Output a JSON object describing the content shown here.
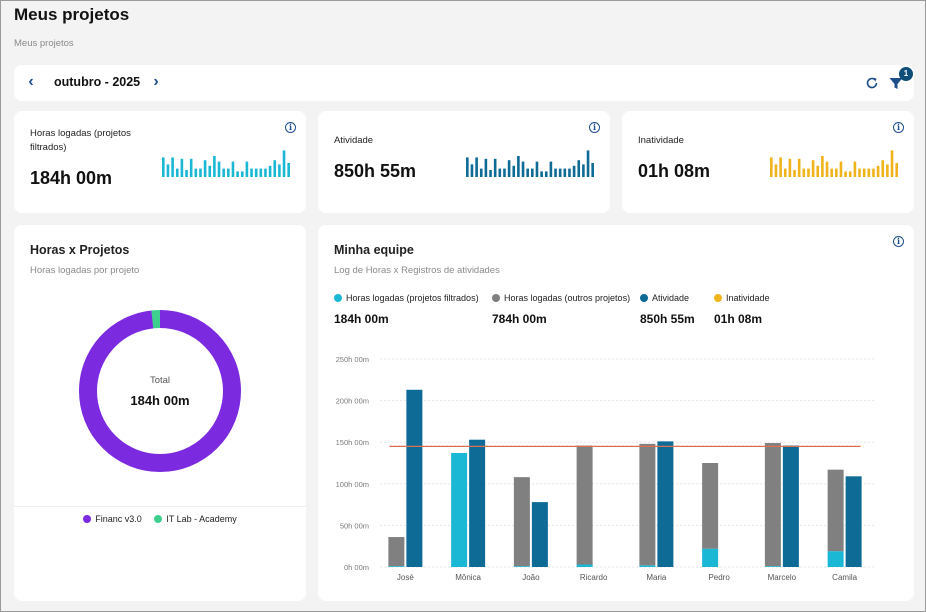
{
  "page": {
    "title": "Meus projetos",
    "breadcrumb": "Meus projetos"
  },
  "month_selector": {
    "prev_label": "‹",
    "month": "outubro - 2025",
    "next_label": "›",
    "filter_count": "1"
  },
  "icons": {
    "prev": "chevron-left-icon",
    "next": "chevron-right-icon",
    "refresh": "refresh-icon",
    "filter": "filter-icon",
    "info": "info-icon"
  },
  "colors": {
    "cyan": "#1bb8d6",
    "blue": "#0e6b96",
    "gray": "#808080",
    "amber": "#f0b31c",
    "purple": "#7b2ae0",
    "green": "#3ecf8e",
    "target_line": "#d9704f"
  },
  "kpis": [
    {
      "title": "Horas logadas (projetos filtrados)",
      "value": "184h 00m",
      "color": "#1bb8d6",
      "spark": [
        0.7,
        0.45,
        0.7,
        0.3,
        0.65,
        0.25,
        0.65,
        0.3,
        0.3,
        0.6,
        0.4,
        0.75,
        0.55,
        0.3,
        0.3,
        0.55,
        0.2,
        0.2,
        0.55,
        0.3,
        0.3,
        0.3,
        0.3,
        0.4,
        0.6,
        0.45,
        0.95,
        0.5
      ]
    },
    {
      "title": "Atividade",
      "value": "850h 55m",
      "color": "#0e6b96",
      "spark": [
        0.7,
        0.45,
        0.7,
        0.3,
        0.65,
        0.25,
        0.65,
        0.3,
        0.3,
        0.6,
        0.4,
        0.75,
        0.55,
        0.3,
        0.3,
        0.55,
        0.2,
        0.2,
        0.55,
        0.3,
        0.3,
        0.3,
        0.3,
        0.4,
        0.6,
        0.45,
        0.95,
        0.5
      ]
    },
    {
      "title": "Inatividade",
      "value": "01h 08m",
      "color": "#f0b31c",
      "spark": [
        0.7,
        0.45,
        0.7,
        0.3,
        0.65,
        0.25,
        0.65,
        0.3,
        0.3,
        0.6,
        0.4,
        0.75,
        0.55,
        0.3,
        0.3,
        0.55,
        0.2,
        0.2,
        0.55,
        0.3,
        0.3,
        0.3,
        0.3,
        0.4,
        0.6,
        0.45,
        0.95,
        0.5
      ]
    }
  ],
  "projects_card": {
    "title": "Horas x Projetos",
    "subtitle": "Horas logadas por projeto",
    "center_label": "Total",
    "center_value": "184h 00m",
    "slices": [
      {
        "name": "Financ v3.0",
        "share": 0.983,
        "color": "#7b2ae0"
      },
      {
        "name": "IT Lab - Academy",
        "share": 0.017,
        "color": "#3ecf8e"
      }
    ]
  },
  "team_card": {
    "title": "Minha equipe",
    "subtitle": "Log de Horas x Registros de atividades",
    "legend": [
      {
        "label": "Horas logadas (projetos filtrados)",
        "value": "184h 00m",
        "color": "#1bb8d6"
      },
      {
        "label": "Horas logadas (outros projetos)",
        "value": "784h 00m",
        "color": "#808080"
      },
      {
        "label": "Atividade",
        "value": "850h 55m",
        "color": "#0e6b96"
      },
      {
        "label": "Inatividade",
        "value": "01h 08m",
        "color": "#f0b31c"
      }
    ]
  },
  "chart_data": {
    "type": "bar",
    "categories": [
      "José",
      "Mônica",
      "João",
      "Ricardo",
      "Maria",
      "Pedro",
      "Marcelo",
      "Camila"
    ],
    "y_tick_labels": [
      "0h 00m",
      "50h 00m",
      "100h 00m",
      "150h 00m",
      "200h 00m",
      "250h 00m"
    ],
    "ylim": [
      0,
      250
    ],
    "stacked_bar_series": [
      {
        "name": "Horas logadas (projetos filtrados)",
        "values": [
          1,
          137,
          1,
          3,
          2,
          22,
          1,
          19
        ]
      },
      {
        "name": "Horas logadas (outros projetos)",
        "values": [
          35,
          0,
          107,
          143,
          146,
          103,
          148,
          98
        ]
      }
    ],
    "side_bar_series": [
      {
        "name": "Atividade",
        "values": [
          213,
          153,
          78,
          0,
          151,
          0,
          146,
          109
        ]
      }
    ],
    "reference_line": 145,
    "grid": true
  }
}
